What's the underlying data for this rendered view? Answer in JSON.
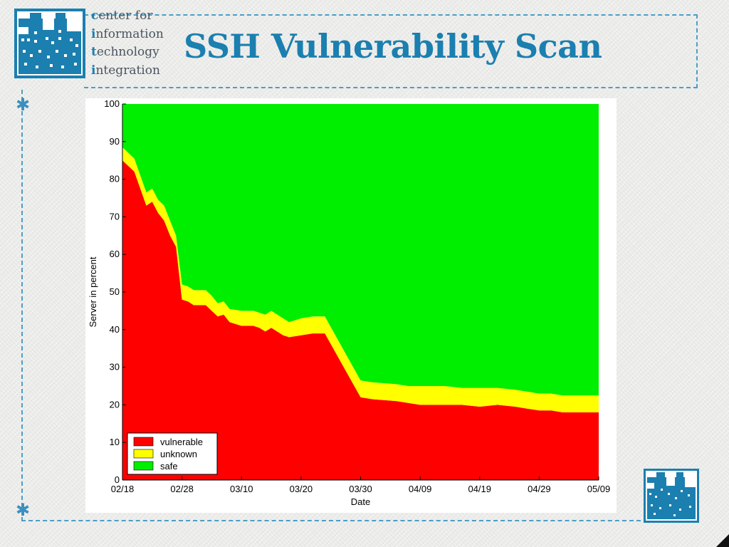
{
  "header": {
    "org_lines": [
      {
        "first": "c",
        "rest": "enter for"
      },
      {
        "first": "i",
        "rest": "nformation"
      },
      {
        "first": "t",
        "rest": "echnology"
      },
      {
        "first": "i",
        "rest": "ntegration"
      }
    ],
    "title": "SSH Vulnerability Scan"
  },
  "colors": {
    "brand": "#1b7fb0",
    "vulnerable": "#ff0000",
    "unknown": "#ffff00",
    "safe": "#00ee00"
  },
  "icons": [
    "city-skyline-logo-icon",
    "asterisk-bullet-icon"
  ],
  "chart_data": {
    "type": "area",
    "stacked": true,
    "title": "",
    "xlabel": "Date",
    "ylabel": "Server in percent",
    "xlim": [
      "2002-02-18",
      "2002-05-09"
    ],
    "ylim": [
      0,
      100
    ],
    "x_ticks": [
      "02/18",
      "02/28",
      "03/10",
      "03/20",
      "03/30",
      "04/09",
      "04/19",
      "04/29",
      "05/09"
    ],
    "y_ticks": [
      "0",
      "10",
      "20",
      "30",
      "40",
      "50",
      "60",
      "70",
      "80",
      "90",
      "100"
    ],
    "grid": false,
    "legend_position": "bottom-left",
    "x": [
      "2002-02-18",
      "2002-02-20",
      "2002-02-22",
      "2002-02-23",
      "2002-02-24",
      "2002-02-25",
      "2002-02-26",
      "2002-02-27",
      "2002-02-28",
      "2002-03-01",
      "2002-03-02",
      "2002-03-04",
      "2002-03-05",
      "2002-03-06",
      "2002-03-07",
      "2002-03-08",
      "2002-03-10",
      "2002-03-12",
      "2002-03-13",
      "2002-03-14",
      "2002-03-15",
      "2002-03-17",
      "2002-03-18",
      "2002-03-20",
      "2002-03-22",
      "2002-03-24",
      "2002-03-30",
      "2002-04-01",
      "2002-04-05",
      "2002-04-07",
      "2002-04-09",
      "2002-04-11",
      "2002-04-13",
      "2002-04-16",
      "2002-04-19",
      "2002-04-22",
      "2002-04-25",
      "2002-04-27",
      "2002-04-29",
      "2002-05-01",
      "2002-05-03",
      "2002-05-09"
    ],
    "series": [
      {
        "name": "vulnerable",
        "color": "#ff0000",
        "values": [
          85,
          82,
          73,
          74,
          71,
          69,
          65,
          62,
          48,
          47.5,
          46.5,
          46.5,
          45,
          43.5,
          44,
          42,
          41,
          41,
          40.5,
          39.5,
          40.5,
          38.5,
          38,
          38.5,
          39,
          39,
          22,
          21.5,
          21,
          20.5,
          20,
          20,
          20,
          20,
          19.5,
          20,
          19.5,
          19,
          18.5,
          18.5,
          18,
          18
        ]
      },
      {
        "name": "unknown",
        "color": "#ffff00",
        "values": [
          3.5,
          3.5,
          3.5,
          3.5,
          3.5,
          4,
          4,
          3,
          4,
          4,
          4,
          4,
          4,
          3.5,
          3.5,
          3.5,
          4,
          4,
          4,
          4.5,
          4.5,
          4.5,
          4,
          4.5,
          4.5,
          4.5,
          4.5,
          4.5,
          4.5,
          4.5,
          5,
          5,
          5,
          4.5,
          5,
          4.5,
          4.5,
          4.5,
          4.5,
          4.5,
          4.5,
          4.5
        ]
      },
      {
        "name": "safe",
        "color": "#00ee00",
        "values": [
          11.5,
          14.5,
          23.5,
          22.5,
          25.5,
          27,
          31,
          35,
          48,
          48.5,
          49.5,
          49.5,
          51,
          53,
          52.5,
          54.5,
          55,
          55,
          55.5,
          56,
          55,
          57,
          58,
          57,
          56.5,
          56.5,
          73.5,
          74,
          74.5,
          75,
          75,
          75,
          75,
          75.5,
          75.5,
          75.5,
          76,
          76.5,
          77,
          77,
          77.5,
          77.5
        ]
      }
    ]
  }
}
